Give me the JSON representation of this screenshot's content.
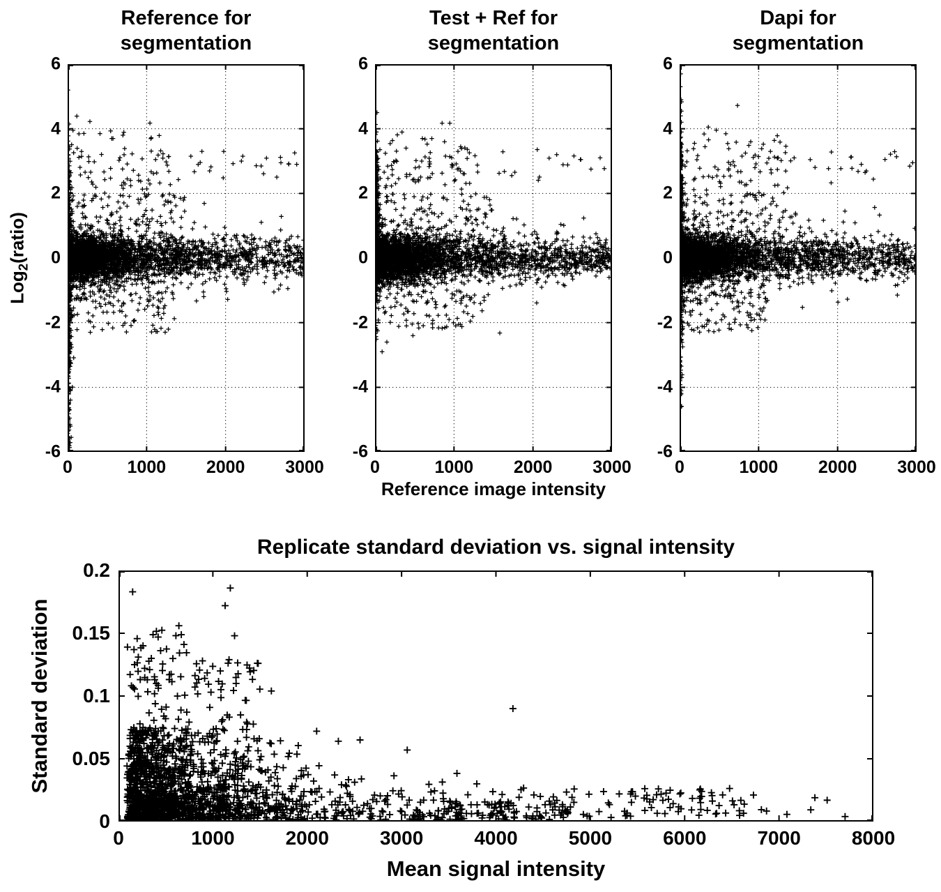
{
  "page": {
    "background": "#ffffff",
    "marker_color": "#000000"
  },
  "top_row": {
    "shared_xlabel": "Reference image intensity",
    "ylabel_pre": "Log",
    "ylabel_sub": "2",
    "ylabel_post": "(ratio)"
  },
  "chart_data": [
    {
      "type": "scatter",
      "id": "reference-for-segmentation",
      "title_line1": "Reference for",
      "title_line2": "segmentation",
      "ylabel": "Log2(ratio)",
      "xlim": [
        0,
        3000
      ],
      "ylim": [
        -6,
        6
      ],
      "xticks": [
        0,
        1000,
        2000,
        3000
      ],
      "xtick_labels": [
        "0",
        "1000",
        "2000",
        "3000"
      ],
      "yticks": [
        -6,
        -4,
        -2,
        0,
        2,
        4,
        6
      ],
      "ytick_labels": [
        "-6",
        "-4",
        "-2",
        "0",
        "2",
        "4",
        "6"
      ],
      "grid_x": [
        1000,
        2000
      ],
      "grid_y": [
        -4,
        -2,
        0,
        2,
        4
      ],
      "marker": "+",
      "marker_size": 3.2,
      "marker_width": 1.25,
      "seed": 11,
      "clusters": [
        {
          "n": 2400,
          "x": [
            "texp",
            420,
            5,
            3000
          ],
          "y": [
            "norm",
            0,
            0.32
          ]
        },
        {
          "n": 700,
          "x": [
            "texp",
            900,
            5,
            3000
          ],
          "y": [
            "norm",
            0,
            0.6
          ]
        },
        {
          "n": 500,
          "x": [
            "uniform",
            1200,
            3000
          ],
          "y": [
            "norm",
            0,
            0.28
          ]
        },
        {
          "n": 320,
          "x": [
            "texp",
            18,
            2,
            90
          ],
          "y": [
            "norm",
            -0.8,
            1.9
          ]
        },
        {
          "n": 70,
          "x": [
            "texp",
            10,
            2,
            50
          ],
          "y": [
            "uniform",
            -6,
            -2.5
          ]
        },
        {
          "n": 40,
          "x": [
            "texp",
            10,
            2,
            60
          ],
          "y": [
            "uniform",
            0.8,
            2.6
          ]
        },
        {
          "n": 85,
          "x": [
            "uniform",
            60,
            1300
          ],
          "y": [
            "norm",
            2.7,
            0.6
          ]
        },
        {
          "n": 18,
          "x": [
            "uniform",
            1300,
            2950
          ],
          "y": [
            "uniform",
            2.4,
            3.4
          ]
        },
        {
          "n": 85,
          "x": [
            "uniform",
            40,
            1400
          ],
          "y": [
            "uniform",
            -2.3,
            -1.0
          ]
        },
        {
          "n": 60,
          "x": [
            "uniform",
            30,
            1500
          ],
          "y": [
            "uniform",
            1.0,
            2.0
          ]
        }
      ],
      "points": [
        [
          20,
          -5.8
        ],
        [
          28,
          -5.2
        ],
        [
          24,
          -4.7
        ],
        [
          36,
          -4.1
        ],
        [
          410,
          3.85
        ],
        [
          700,
          3.8
        ],
        [
          2900,
          2.9
        ],
        [
          2700,
          2.95
        ],
        [
          2450,
          2.85
        ],
        [
          2200,
          3.0
        ],
        [
          1700,
          3.3
        ],
        [
          1560,
          3.15
        ]
      ]
    },
    {
      "type": "scatter",
      "id": "test-ref-for-segmentation",
      "title_line1": "Test + Ref for",
      "title_line2": "segmentation",
      "ylabel": "Log2(ratio)",
      "xlim": [
        0,
        3000
      ],
      "ylim": [
        -6,
        6
      ],
      "xticks": [
        0,
        1000,
        2000,
        3000
      ],
      "xtick_labels": [
        "0",
        "1000",
        "2000",
        "3000"
      ],
      "yticks": [
        -6,
        -4,
        -2,
        0,
        2,
        4,
        6
      ],
      "ytick_labels": [
        "-6",
        "-4",
        "-2",
        "0",
        "2",
        "4",
        "6"
      ],
      "grid_x": [
        1000,
        2000
      ],
      "grid_y": [
        -4,
        -2,
        0,
        2,
        4
      ],
      "marker": "+",
      "marker_size": 3.2,
      "marker_width": 1.25,
      "seed": 22,
      "clusters": [
        {
          "n": 2400,
          "x": [
            "texp",
            420,
            5,
            3000
          ],
          "y": [
            "norm",
            0,
            0.32
          ]
        },
        {
          "n": 700,
          "x": [
            "texp",
            900,
            5,
            3000
          ],
          "y": [
            "norm",
            0,
            0.6
          ]
        },
        {
          "n": 500,
          "x": [
            "uniform",
            1200,
            3000
          ],
          "y": [
            "norm",
            0,
            0.28
          ]
        },
        {
          "n": 330,
          "x": [
            "texp",
            16,
            2,
            80
          ],
          "y": [
            "norm",
            0.9,
            1.1
          ]
        },
        {
          "n": 120,
          "x": [
            "texp",
            8,
            2,
            40
          ],
          "y": [
            "uniform",
            1.5,
            3.2
          ]
        },
        {
          "n": 8,
          "x": [
            "texp",
            10,
            2,
            50
          ],
          "y": [
            "uniform",
            -2.8,
            -2.0
          ]
        },
        {
          "n": 80,
          "x": [
            "uniform",
            60,
            1200
          ],
          "y": [
            "norm",
            2.9,
            0.5
          ]
        },
        {
          "n": 18,
          "x": [
            "uniform",
            1200,
            2950
          ],
          "y": [
            "uniform",
            2.4,
            3.4
          ]
        },
        {
          "n": 70,
          "x": [
            "uniform",
            40,
            1400
          ],
          "y": [
            "uniform",
            -2.2,
            -1.0
          ]
        },
        {
          "n": 60,
          "x": [
            "uniform",
            30,
            1500
          ],
          "y": [
            "uniform",
            1.0,
            2.0
          ]
        }
      ],
      "points": [
        [
          25,
          4.5
        ],
        [
          18,
          3.9
        ],
        [
          600,
          3.7
        ],
        [
          880,
          3.6
        ],
        [
          1050,
          3.3
        ],
        [
          2300,
          3.2
        ],
        [
          2600,
          3.05
        ],
        [
          2850,
          3.1
        ],
        [
          150,
          -2.6
        ],
        [
          480,
          -2.4
        ],
        [
          90,
          -2.9
        ]
      ]
    },
    {
      "type": "scatter",
      "id": "dapi-for-segmentation",
      "title_line1": "Dapi for",
      "title_line2": "segmentation",
      "ylabel": "Log2(ratio)",
      "xlim": [
        0,
        3000
      ],
      "ylim": [
        -6,
        6
      ],
      "xticks": [
        0,
        1000,
        2000,
        3000
      ],
      "xtick_labels": [
        "0",
        "1000",
        "2000",
        "3000"
      ],
      "yticks": [
        -6,
        -4,
        -2,
        0,
        2,
        4,
        6
      ],
      "ytick_labels": [
        "-6",
        "-4",
        "-2",
        "0",
        "2",
        "4",
        "6"
      ],
      "grid_x": [
        1000,
        2000
      ],
      "grid_y": [
        -4,
        -2,
        0,
        2,
        4
      ],
      "marker": "+",
      "marker_size": 3.2,
      "marker_width": 1.25,
      "seed": 33,
      "clusters": [
        {
          "n": 2400,
          "x": [
            "texp",
            420,
            5,
            3000
          ],
          "y": [
            "norm",
            0,
            0.32
          ]
        },
        {
          "n": 700,
          "x": [
            "texp",
            900,
            5,
            3000
          ],
          "y": [
            "norm",
            0,
            0.6
          ]
        },
        {
          "n": 500,
          "x": [
            "uniform",
            1200,
            3000
          ],
          "y": [
            "norm",
            0,
            0.28
          ]
        },
        {
          "n": 330,
          "x": [
            "texp",
            14,
            2,
            80
          ],
          "y": [
            "norm",
            0.5,
            1.5
          ]
        },
        {
          "n": 110,
          "x": [
            "texp",
            8,
            2,
            40
          ],
          "y": [
            "uniform",
            1.2,
            3.6
          ]
        },
        {
          "n": 25,
          "x": [
            "texp",
            8,
            2,
            40
          ],
          "y": [
            "uniform",
            -4.6,
            -2.2
          ]
        },
        {
          "n": 90,
          "x": [
            "uniform",
            60,
            1400
          ],
          "y": [
            "norm",
            2.7,
            0.6
          ]
        },
        {
          "n": 18,
          "x": [
            "uniform",
            1400,
            2950
          ],
          "y": [
            "uniform",
            2.3,
            3.3
          ]
        },
        {
          "n": 80,
          "x": [
            "uniform",
            40,
            1100
          ],
          "y": [
            "uniform",
            -2.3,
            -1.0
          ]
        },
        {
          "n": 60,
          "x": [
            "uniform",
            30,
            1500
          ],
          "y": [
            "uniform",
            1.0,
            2.0
          ]
        }
      ],
      "points": [
        [
          14,
          5.7
        ],
        [
          10,
          5.3
        ],
        [
          18,
          4.9
        ],
        [
          12,
          4.4
        ],
        [
          22,
          3.9
        ],
        [
          16,
          -4.6
        ],
        [
          20,
          -4.2
        ],
        [
          26,
          -3.7
        ],
        [
          900,
          3.6
        ],
        [
          1150,
          3.3
        ],
        [
          2950,
          2.95
        ],
        [
          2600,
          3.05
        ],
        [
          2300,
          2.9
        ],
        [
          1450,
          3.1
        ]
      ]
    },
    {
      "type": "scatter",
      "id": "replicate-sd-vs-signal-intensity",
      "title": "Replicate standard deviation vs. signal intensity",
      "xlabel": "Mean signal intensity",
      "ylabel": "Standard deviation",
      "xlim": [
        0,
        8000
      ],
      "ylim": [
        0,
        0.2
      ],
      "xticks": [
        0,
        1000,
        2000,
        3000,
        4000,
        5000,
        6000,
        7000,
        8000
      ],
      "xtick_labels": [
        "0",
        "1000",
        "2000",
        "3000",
        "4000",
        "5000",
        "6000",
        "7000",
        "8000"
      ],
      "yticks": [
        0,
        0.05,
        0.1,
        0.15,
        0.2
      ],
      "ytick_labels": [
        "0",
        "0.05",
        "0.1",
        "0.15",
        "0.2"
      ],
      "grid_x": [],
      "grid_y": [],
      "marker": "+",
      "marker_size": 5,
      "marker_width": 1.9,
      "seed": 44,
      "clusters": [
        {
          "n": 800,
          "x": [
            "texp",
            650,
            90,
            3000
          ],
          "y": [
            "absn",
            0.026,
            0.001
          ]
        },
        {
          "n": 500,
          "x": [
            "texp",
            1100,
            150,
            4200
          ],
          "y": [
            "absn",
            0.014,
            0.001
          ]
        },
        {
          "n": 300,
          "x": [
            "texp",
            520,
            120,
            1800
          ],
          "y": [
            "uniform",
            0.035,
            0.075
          ]
        },
        {
          "n": 70,
          "x": [
            "uniform",
            110,
            1500
          ],
          "y": [
            "uniform",
            0.075,
            0.13
          ]
        },
        {
          "n": 25,
          "x": [
            "uniform",
            110,
            900
          ],
          "y": [
            "uniform",
            0.1,
            0.155
          ]
        },
        {
          "n": 140,
          "x": [
            "uniform",
            3000,
            4800
          ],
          "y": [
            "absn",
            0.012,
            0.001
          ]
        },
        {
          "n": 70,
          "x": [
            "uniform",
            4800,
            6600
          ],
          "y": [
            "uniform",
            0.003,
            0.027
          ]
        },
        {
          "n": 8,
          "x": [
            "uniform",
            6600,
            7800
          ],
          "y": [
            "uniform",
            0.003,
            0.022
          ]
        }
      ],
      "points": [
        [
          150,
          0.183
        ],
        [
          1185,
          0.186
        ],
        [
          1130,
          0.172
        ],
        [
          1230,
          0.148
        ],
        [
          640,
          0.156
        ],
        [
          420,
          0.147
        ],
        [
          95,
          0.139
        ],
        [
          260,
          0.14
        ],
        [
          210,
          0.131
        ],
        [
          890,
          0.128
        ],
        [
          1480,
          0.126
        ],
        [
          330,
          0.121
        ],
        [
          540,
          0.117
        ],
        [
          170,
          0.125
        ],
        [
          980,
          0.103
        ],
        [
          1620,
          0.104
        ],
        [
          4180,
          0.09
        ],
        [
          2100,
          0.072
        ],
        [
          2330,
          0.064
        ],
        [
          2560,
          0.065
        ],
        [
          3060,
          0.057
        ],
        [
          5950,
          0.022
        ],
        [
          6180,
          0.024
        ],
        [
          5600,
          0.018
        ],
        [
          7380,
          0.019
        ],
        [
          7700,
          0.004
        ]
      ]
    }
  ]
}
